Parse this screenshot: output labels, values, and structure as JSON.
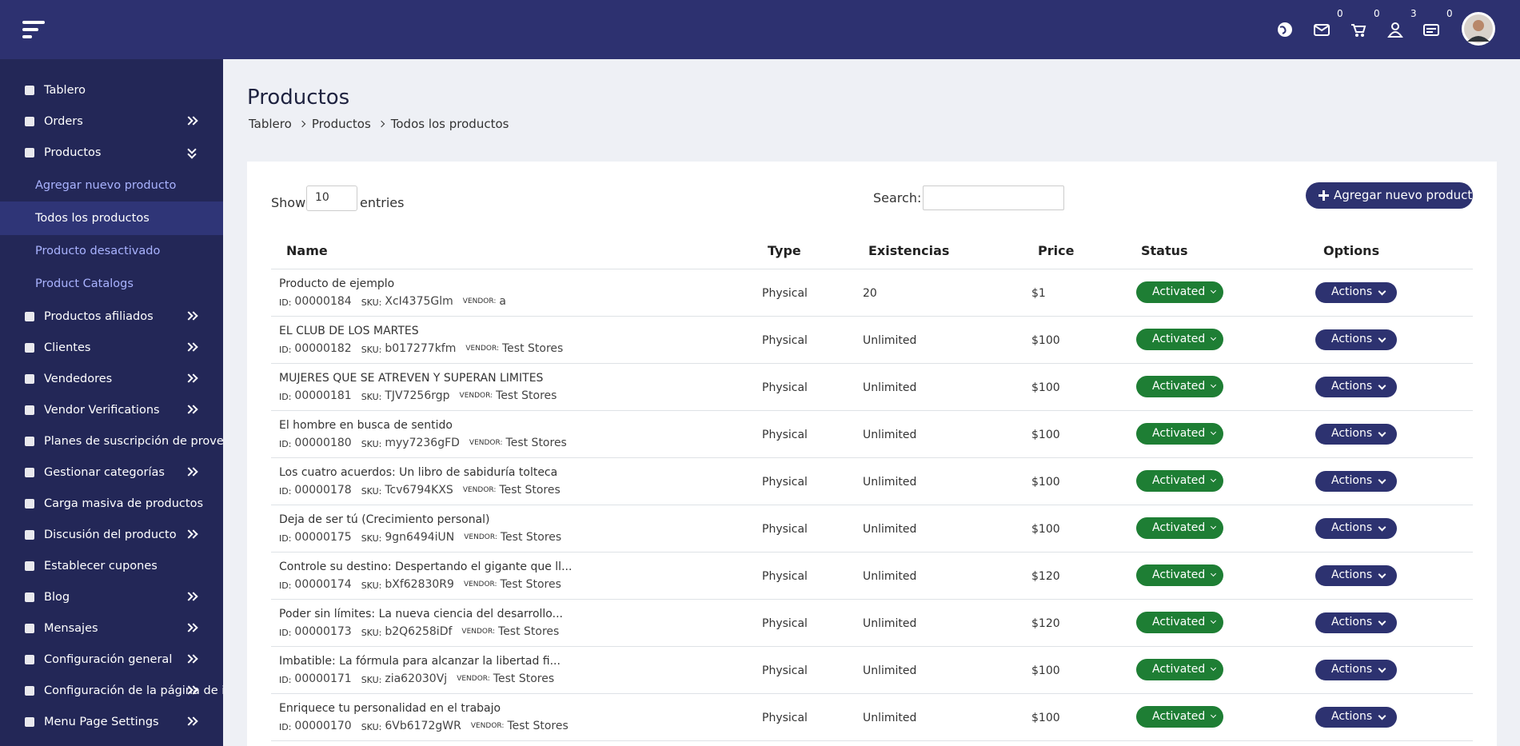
{
  "header": {
    "badges": [
      "0",
      "0",
      "3",
      "0"
    ]
  },
  "sidebar": {
    "menu": [
      {
        "label": "Tablero"
      },
      {
        "label": "Orders"
      },
      {
        "label": "Productos",
        "submenu": [
          "Agregar nuevo producto",
          "Todos los productos",
          "Producto desactivado",
          "Product Catalogs"
        ]
      },
      {
        "label": "Productos afiliados"
      },
      {
        "label": "Clientes"
      },
      {
        "label": "Vendedores"
      },
      {
        "label": "Vendor Verifications"
      },
      {
        "label": "Planes de suscripción de proveedores"
      },
      {
        "label": "Gestionar categorías"
      },
      {
        "label": "Carga masiva de productos"
      },
      {
        "label": "Discusión del producto"
      },
      {
        "label": "Establecer cupones"
      },
      {
        "label": "Blog"
      },
      {
        "label": "Mensajes"
      },
      {
        "label": "Configuración general"
      },
      {
        "label": "Configuración de la página de inicio"
      },
      {
        "label": "Menu Page Settings"
      }
    ]
  },
  "page": {
    "title": "Productos",
    "breadcrumbs": [
      "Tablero",
      "Productos",
      "Todos los productos"
    ]
  },
  "controls": {
    "show": "Show",
    "entries_value": "10",
    "entries": "entries",
    "search": "Search:",
    "add_button": "Agregar nuevo producto"
  },
  "table": {
    "columns": [
      "Name",
      "Type",
      "Existencias",
      "Price",
      "Status",
      "Options"
    ],
    "meta_labels": [
      "ID:",
      "SKU:",
      "VENDOR:"
    ],
    "rows": [
      {
        "name": "Producto de ejemplo",
        "id": "00000184",
        "sku": "XcI4375Glm",
        "vendor": "a",
        "type": "Physical",
        "stock": "20",
        "price": "$1",
        "status": "Activated",
        "action": "Actions"
      },
      {
        "name": "EL CLUB DE LOS MARTES",
        "id": "00000182",
        "sku": "b017277kfm",
        "vendor": "Test Stores",
        "type": "Physical",
        "stock": "Unlimited",
        "price": "$100",
        "status": "Activated",
        "action": "Actions"
      },
      {
        "name": "MUJERES QUE SE ATREVEN Y SUPERAN LIMITES",
        "id": "00000181",
        "sku": "TJV7256rgp",
        "vendor": "Test Stores",
        "type": "Physical",
        "stock": "Unlimited",
        "price": "$100",
        "status": "Activated",
        "action": "Actions"
      },
      {
        "name": "El hombre en busca de sentido",
        "id": "00000180",
        "sku": "myy7236gFD",
        "vendor": "Test Stores",
        "type": "Physical",
        "stock": "Unlimited",
        "price": "$100",
        "status": "Activated",
        "action": "Actions"
      },
      {
        "name": "Los cuatro acuerdos: Un libro de sabiduría tolteca",
        "id": "00000178",
        "sku": "Tcv6794KXS",
        "vendor": "Test Stores",
        "type": "Physical",
        "stock": "Unlimited",
        "price": "$100",
        "status": "Activated",
        "action": "Actions"
      },
      {
        "name": "Deja de ser tú (Crecimiento personal)",
        "id": "00000175",
        "sku": "9gn6494iUN",
        "vendor": "Test Stores",
        "type": "Physical",
        "stock": "Unlimited",
        "price": "$100",
        "status": "Activated",
        "action": "Actions"
      },
      {
        "name": "Controle su destino: Despertando el gigante que ll...",
        "id": "00000174",
        "sku": "bXf62830R9",
        "vendor": "Test Stores",
        "type": "Physical",
        "stock": "Unlimited",
        "price": "$120",
        "status": "Activated",
        "action": "Actions"
      },
      {
        "name": "Poder sin límites: La nueva ciencia del desarrollo...",
        "id": "00000173",
        "sku": "b2Q6258iDf",
        "vendor": "Test Stores",
        "type": "Physical",
        "stock": "Unlimited",
        "price": "$120",
        "status": "Activated",
        "action": "Actions"
      },
      {
        "name": "Imbatible: La fórmula para alcanzar la libertad fi...",
        "id": "00000171",
        "sku": "zia62030Vj",
        "vendor": "Test Stores",
        "type": "Physical",
        "stock": "Unlimited",
        "price": "$100",
        "status": "Activated",
        "action": "Actions"
      },
      {
        "name": "Enriquece tu personalidad en el trabajo",
        "id": "00000170",
        "sku": "6Vb6172gWR",
        "vendor": "Test Stores",
        "type": "Physical",
        "stock": "Unlimited",
        "price": "$100",
        "status": "Activated",
        "action": "Actions"
      }
    ]
  }
}
